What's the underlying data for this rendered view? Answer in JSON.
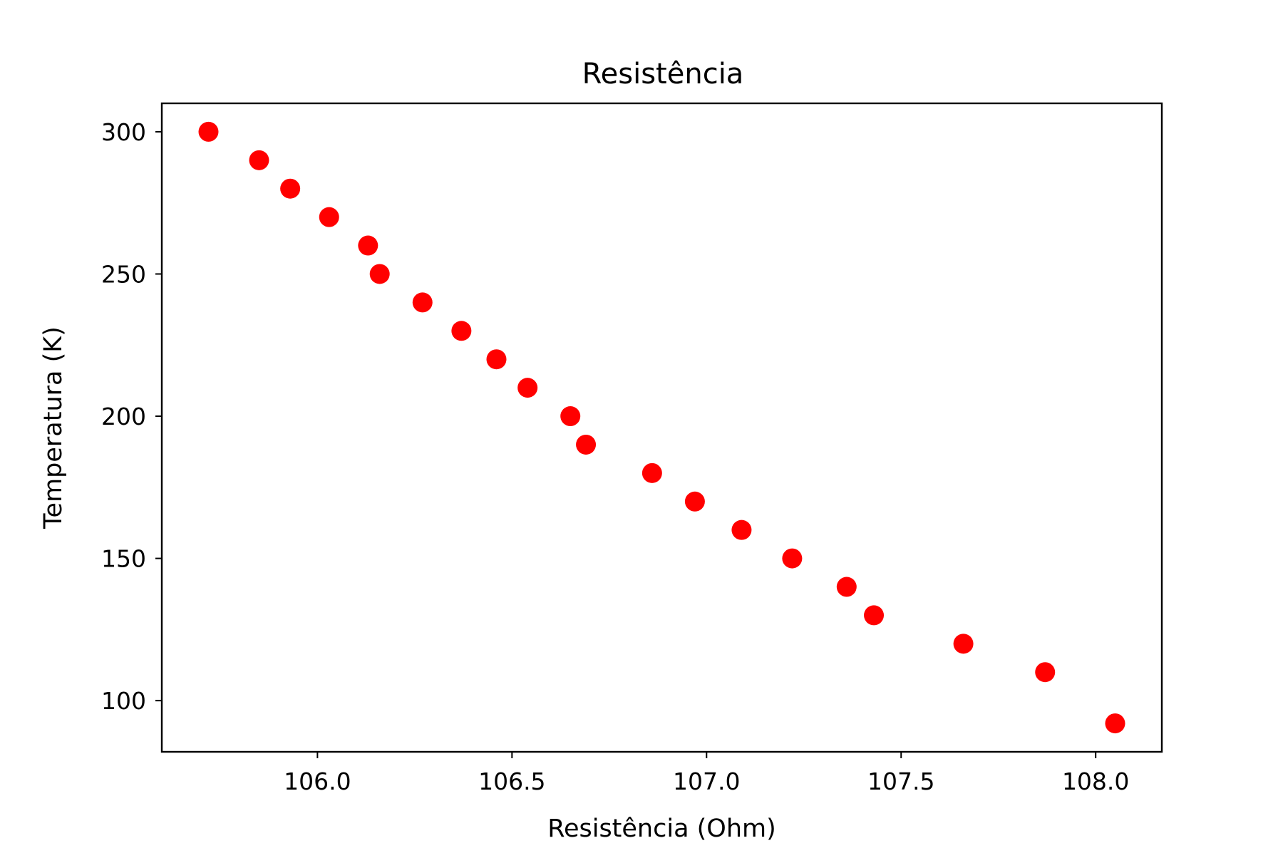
{
  "chart_data": {
    "type": "scatter",
    "title": "Resistência",
    "xlabel": "Resistência (Ohm)",
    "ylabel": "Temperatura (K)",
    "xlim": [
      105.6,
      108.17
    ],
    "ylim": [
      82,
      310
    ],
    "xticks": [
      106.0,
      106.5,
      107.0,
      107.5,
      108.0
    ],
    "xtick_labels": [
      "106.0",
      "106.5",
      "107.0",
      "107.5",
      "108.0"
    ],
    "yticks": [
      100,
      150,
      200,
      250,
      300
    ],
    "ytick_labels": [
      "100",
      "150",
      "200",
      "250",
      "300"
    ],
    "grid": false,
    "marker_color": "#ff0000",
    "points": [
      {
        "x": 105.72,
        "y": 300
      },
      {
        "x": 105.85,
        "y": 290
      },
      {
        "x": 105.93,
        "y": 280
      },
      {
        "x": 106.03,
        "y": 270
      },
      {
        "x": 106.13,
        "y": 260
      },
      {
        "x": 106.16,
        "y": 250
      },
      {
        "x": 106.27,
        "y": 240
      },
      {
        "x": 106.37,
        "y": 230
      },
      {
        "x": 106.46,
        "y": 220
      },
      {
        "x": 106.54,
        "y": 210
      },
      {
        "x": 106.65,
        "y": 200
      },
      {
        "x": 106.69,
        "y": 190
      },
      {
        "x": 106.86,
        "y": 180
      },
      {
        "x": 106.97,
        "y": 170
      },
      {
        "x": 107.09,
        "y": 160
      },
      {
        "x": 107.22,
        "y": 150
      },
      {
        "x": 107.36,
        "y": 140
      },
      {
        "x": 107.43,
        "y": 130
      },
      {
        "x": 107.66,
        "y": 120
      },
      {
        "x": 107.87,
        "y": 110
      },
      {
        "x": 108.05,
        "y": 92
      }
    ]
  }
}
